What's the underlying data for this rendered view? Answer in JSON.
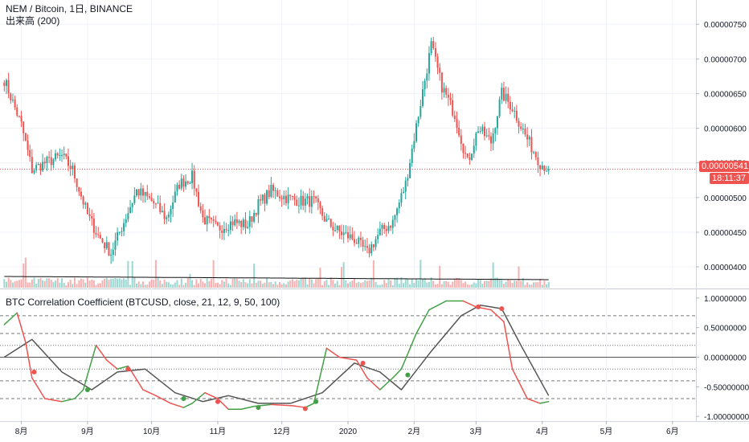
{
  "main_pane": {
    "symbol_title": "NEM / Bitcoin, 1日, BINANCE",
    "volume_label": "出来高 (200)",
    "last_price_tag": "0.00000541",
    "countdown_tag": "18:11:37",
    "price_ticks": [
      "0.00000750",
      "0.00000700",
      "0.00000650",
      "0.00000600",
      "0.00000550",
      "0.00000500",
      "0.00000450",
      "0.00000400"
    ]
  },
  "indicator_pane": {
    "title": "BTC Correlation Coefficient (BTCUSD, close, 21, 12, 9, 50, 100)",
    "value_ticks": [
      "1.00000000",
      "0.50000000",
      "0.00000000",
      "-0.50000000",
      "-1.00000000"
    ]
  },
  "time_axis": {
    "ticks": [
      "8月",
      "9月",
      "10月",
      "11月",
      "12月",
      "2020",
      "2月",
      "3月",
      "4月",
      "5月",
      "6月"
    ]
  },
  "colors": {
    "up": "#26a69a",
    "down": "#ef5350",
    "corr_up": "#43a047",
    "corr_down": "#ef5350",
    "signal": "#555555",
    "volume_ma": "#111111"
  },
  "chart_data": [
    {
      "type": "candlestick",
      "title": "NEM / Bitcoin, 1日, BINANCE",
      "ylim": [
        3.7e-06,
        7.85e-06
      ],
      "close_path": [
        [
          "2019-07-24",
          6.7e-06
        ],
        [
          "2019-08-01",
          6.05e-06
        ],
        [
          "2019-08-06",
          5.4e-06
        ],
        [
          "2019-08-12",
          5.5e-06
        ],
        [
          "2019-08-20",
          5.6e-06
        ],
        [
          "2019-08-25",
          5.4e-06
        ],
        [
          "2019-09-01",
          4.75e-06
        ],
        [
          "2019-09-06",
          4.45e-06
        ],
        [
          "2019-09-12",
          4.2e-06
        ],
        [
          "2019-09-18",
          4.65e-06
        ],
        [
          "2019-09-24",
          5.1e-06
        ],
        [
          "2019-10-01",
          4.95e-06
        ],
        [
          "2019-10-08",
          4.7e-06
        ],
        [
          "2019-10-14",
          5.2e-06
        ],
        [
          "2019-10-20",
          5.3e-06
        ],
        [
          "2019-10-25",
          4.7e-06
        ],
        [
          "2019-11-01",
          4.55e-06
        ],
        [
          "2019-11-08",
          4.65e-06
        ],
        [
          "2019-11-15",
          4.6e-06
        ],
        [
          "2019-11-20",
          4.9e-06
        ],
        [
          "2019-11-26",
          5.1e-06
        ],
        [
          "2019-12-03",
          5e-06
        ],
        [
          "2019-12-10",
          4.95e-06
        ],
        [
          "2019-12-16",
          4.95e-06
        ],
        [
          "2019-12-22",
          4.65e-06
        ],
        [
          "2019-12-28",
          4.5e-06
        ],
        [
          "2020-01-04",
          4.4e-06
        ],
        [
          "2020-01-10",
          4.2e-06
        ],
        [
          "2020-01-16",
          4.5e-06
        ],
        [
          "2020-01-22",
          4.65e-06
        ],
        [
          "2020-01-28",
          5.2e-06
        ],
        [
          "2020-02-03",
          6.2e-06
        ],
        [
          "2020-02-09",
          7.2e-06
        ],
        [
          "2020-02-14",
          6.6e-06
        ],
        [
          "2020-02-20",
          6.2e-06
        ],
        [
          "2020-02-26",
          5.5e-06
        ],
        [
          "2020-03-02",
          6e-06
        ],
        [
          "2020-03-08",
          5.8e-06
        ],
        [
          "2020-03-13",
          6.5e-06
        ],
        [
          "2020-03-18",
          6.3e-06
        ],
        [
          "2020-03-24",
          5.9e-06
        ],
        [
          "2020-03-31",
          5.5e-06
        ],
        [
          "2020-04-04",
          5.41e-06
        ]
      ],
      "volume_ma": 200
    },
    {
      "type": "line",
      "title": "BTC Correlation Coefficient (BTCUSD, close, 21, 12, 9, 50, 100)",
      "ylim": [
        -1.08,
        1.12
      ],
      "series": [
        {
          "name": "",
          "points": [
            [
              "2019-07-24",
              0.55
            ],
            [
              "2019-07-30",
              0.75
            ],
            [
              "2019-08-03",
              0.25
            ],
            [
              "2019-08-06",
              -0.35
            ],
            [
              "2019-08-12",
              -0.7
            ],
            [
              "2019-08-20",
              -0.75
            ],
            [
              "2019-08-26",
              -0.7
            ],
            [
              "2019-08-30",
              -0.55
            ],
            [
              "2019-09-05",
              0.2
            ],
            [
              "2019-09-10",
              -0.05
            ],
            [
              "2019-09-15",
              -0.2
            ],
            [
              "2019-09-20",
              -0.15
            ],
            [
              "2019-09-27",
              -0.55
            ],
            [
              "2019-10-03",
              -0.65
            ],
            [
              "2019-10-10",
              -0.78
            ],
            [
              "2019-10-16",
              -0.85
            ],
            [
              "2019-10-20",
              -0.78
            ],
            [
              "2019-10-26",
              -0.6
            ],
            [
              "2019-11-01",
              -0.7
            ],
            [
              "2019-11-06",
              -0.88
            ],
            [
              "2019-11-12",
              -0.88
            ],
            [
              "2019-11-18",
              -0.83
            ],
            [
              "2019-11-26",
              -0.8
            ],
            [
              "2019-12-06",
              -0.82
            ],
            [
              "2019-12-12",
              -0.85
            ],
            [
              "2019-12-16",
              -0.78
            ],
            [
              "2019-12-22",
              0.15
            ],
            [
              "2019-12-28",
              0.0
            ],
            [
              "2020-01-05",
              -0.05
            ],
            [
              "2020-01-10",
              -0.35
            ],
            [
              "2020-01-16",
              -0.55
            ],
            [
              "2020-01-22",
              -0.35
            ],
            [
              "2020-01-26",
              -0.2
            ],
            [
              "2020-02-02",
              0.4
            ],
            [
              "2020-02-08",
              0.8
            ],
            [
              "2020-02-16",
              0.95
            ],
            [
              "2020-02-24",
              0.95
            ],
            [
              "2020-03-01",
              0.85
            ],
            [
              "2020-03-08",
              0.8
            ],
            [
              "2020-03-14",
              0.6
            ],
            [
              "2020-03-18",
              -0.2
            ],
            [
              "2020-03-25",
              -0.7
            ],
            [
              "2020-03-31",
              -0.78
            ],
            [
              "2020-04-04",
              -0.75
            ]
          ]
        },
        {
          "name": "",
          "points": [
            [
              "2019-07-24",
              0.0
            ],
            [
              "2019-08-06",
              0.3
            ],
            [
              "2019-08-20",
              -0.25
            ],
            [
              "2019-09-03",
              -0.55
            ],
            [
              "2019-09-15",
              -0.25
            ],
            [
              "2019-09-28",
              -0.2
            ],
            [
              "2019-10-12",
              -0.6
            ],
            [
              "2019-10-25",
              -0.75
            ],
            [
              "2019-11-06",
              -0.65
            ],
            [
              "2019-11-20",
              -0.78
            ],
            [
              "2019-12-05",
              -0.78
            ],
            [
              "2019-12-20",
              -0.6
            ],
            [
              "2020-01-04",
              -0.1
            ],
            [
              "2020-01-16",
              -0.25
            ],
            [
              "2020-01-26",
              -0.55
            ],
            [
              "2020-02-09",
              0.1
            ],
            [
              "2020-02-23",
              0.7
            ],
            [
              "2020-03-03",
              0.88
            ],
            [
              "2020-03-13",
              0.82
            ],
            [
              "2020-03-22",
              0.2
            ],
            [
              "2020-04-04",
              -0.65
            ]
          ]
        }
      ],
      "reference_lines": [
        0.7,
        0.4,
        0.2,
        0,
        -0.2,
        -0.4,
        -0.7
      ],
      "markers": [
        [
          "2019-08-07",
          -0.25,
          "down"
        ],
        [
          "2019-09-01",
          -0.55,
          "up"
        ],
        [
          "2019-09-20",
          -0.2,
          "down"
        ],
        [
          "2019-10-16",
          -0.7,
          "up"
        ],
        [
          "2019-11-01",
          -0.75,
          "down"
        ],
        [
          "2019-11-20",
          -0.85,
          "up"
        ],
        [
          "2019-12-12",
          -0.87,
          "down"
        ],
        [
          "2019-12-17",
          -0.75,
          "up"
        ],
        [
          "2020-01-08",
          -0.1,
          "down"
        ],
        [
          "2020-01-29",
          -0.3,
          "up"
        ],
        [
          "2020-03-02",
          0.85,
          "down"
        ],
        [
          "2020-03-13",
          0.82,
          "down"
        ]
      ]
    }
  ]
}
